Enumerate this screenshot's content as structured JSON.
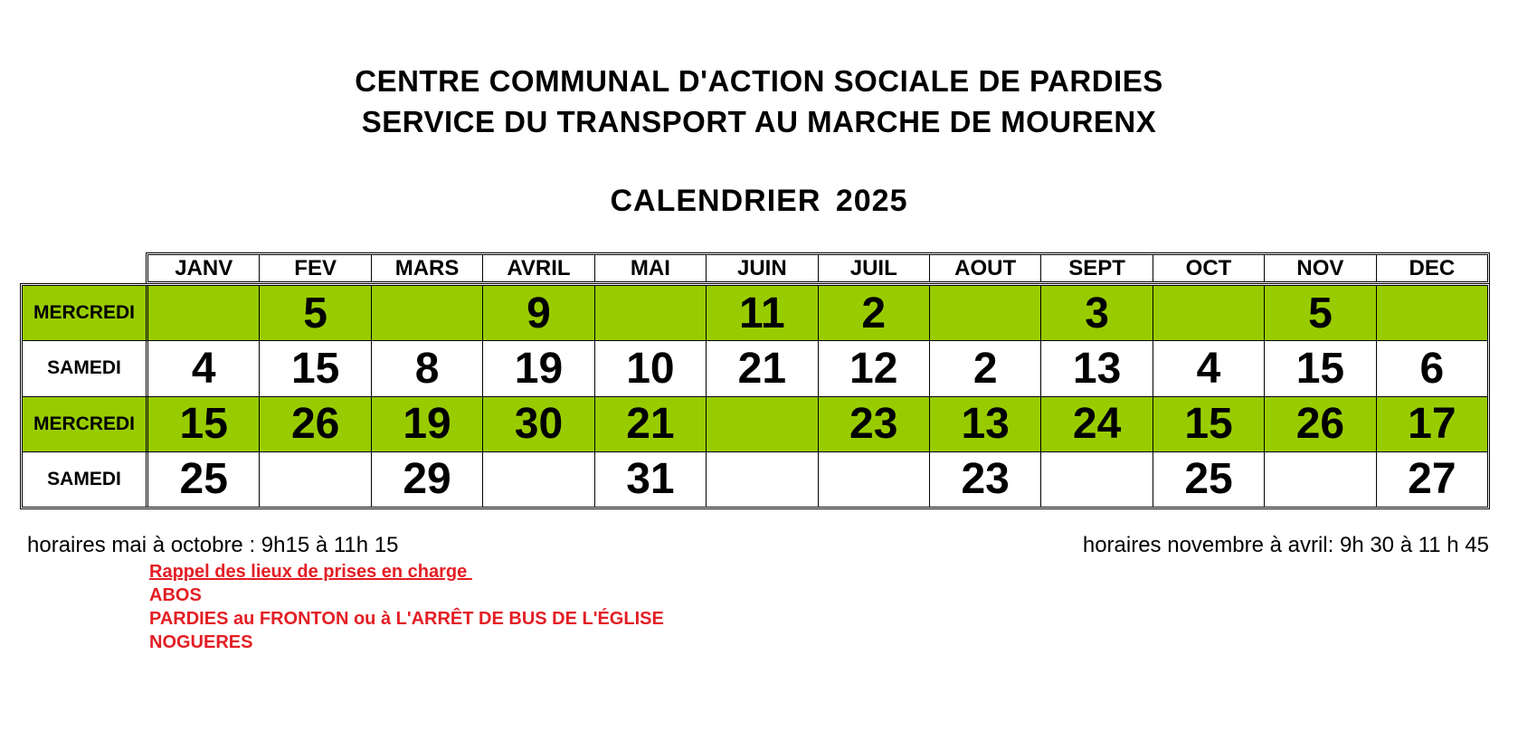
{
  "header": {
    "line1": "CENTRE COMMUNAL D'ACTION SOCIALE DE PARDIES",
    "line2": "SERVICE DU TRANSPORT AU MARCHE DE MOURENX",
    "calendar_title": "CALENDRIER  2025"
  },
  "months": [
    "JANV",
    "FEV",
    "MARS",
    "AVRIL",
    "MAI",
    "JUIN",
    "JUIL",
    "AOUT",
    "SEPT",
    "OCT",
    "NOV",
    "DEC"
  ],
  "rows": [
    {
      "label": "MERCREDI",
      "green": true,
      "cells": [
        "",
        "5",
        "",
        "9",
        "",
        "11",
        "2",
        "",
        "3",
        "",
        "5",
        ""
      ]
    },
    {
      "label": "SAMEDI",
      "green": false,
      "cells": [
        "4",
        "15",
        "8",
        "19",
        "10",
        "21",
        "12",
        "2",
        "13",
        "4",
        "15",
        "6"
      ]
    },
    {
      "label": "MERCREDI",
      "green": true,
      "cells": [
        "15",
        "26",
        "19",
        "30",
        "21",
        "",
        "23",
        "13",
        "24",
        "15",
        "26",
        "17"
      ]
    },
    {
      "label": "SAMEDI",
      "green": false,
      "cells": [
        "25",
        "",
        "29",
        "",
        "31",
        "",
        "",
        "23",
        "",
        "25",
        "",
        "27"
      ]
    }
  ],
  "colors": {
    "green_row": "#99cc00",
    "red_text": "#e31e24"
  },
  "notes": {
    "hours_summer": "horaires mai à octobre : 9h15 à 11h 15",
    "hours_winter": "horaires novembre à avril:  9h 30 à 11 h 45",
    "pickup_title": "Rappel des lieux de prises en charge ",
    "pickup_locations": [
      "ABOS",
      "PARDIES au FRONTON ou à L'ARRÊT DE BUS DE L'ÉGLISE",
      "NOGUERES"
    ]
  }
}
